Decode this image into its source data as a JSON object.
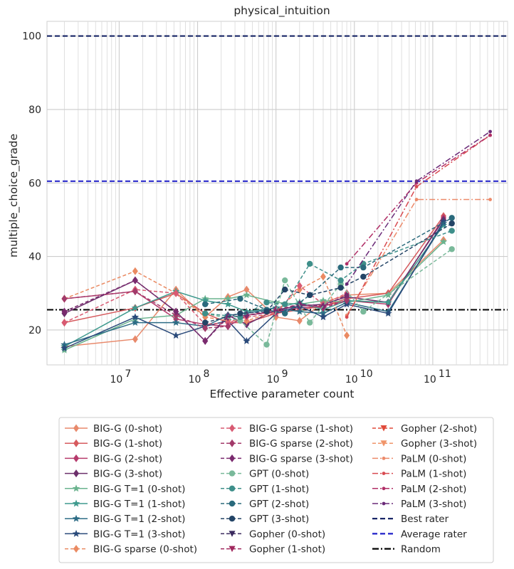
{
  "chart_data": {
    "type": "line",
    "title": "physical_intuition",
    "xlabel": "Effective parameter count",
    "ylabel": "multiple_choice_grade",
    "x_scale": "log",
    "xlim": [
      1200000,
      900000000000
    ],
    "ylim": [
      10.5,
      104
    ],
    "y_ticks": [
      20,
      40,
      60,
      80,
      100
    ],
    "x_ticks": [
      {
        "value": 10000000,
        "base": "10",
        "exp": "7"
      },
      {
        "value": 100000000,
        "base": "10",
        "exp": "8"
      },
      {
        "value": 1000000000,
        "base": "10",
        "exp": "9"
      },
      {
        "value": 10000000000,
        "base": "10",
        "exp": "10"
      },
      {
        "value": 100000000000,
        "base": "10",
        "exp": "11"
      }
    ],
    "grid": true,
    "legend_placement": "below",
    "reference_lines": [
      {
        "name": "Best rater",
        "y": 100.0,
        "color": "#0b1a5e",
        "dash": "dashed"
      },
      {
        "name": "Average rater",
        "y": 60.5,
        "color": "#1f1fc8",
        "dash": "dashed"
      },
      {
        "name": "Random",
        "y": 25.5,
        "color": "#000000",
        "dash": "dashdot"
      }
    ],
    "series": [
      {
        "name": "BIG-G (0-shot)",
        "color": "#e8896b",
        "dash": "solid",
        "marker": "diamond",
        "x": [
          2000000,
          16000000,
          53000000,
          125000000,
          244000000,
          422000000,
          1000000000,
          2000000000,
          4000000000,
          8000000000,
          27000000000,
          137000000000
        ],
        "y": [
          15.5,
          17.5,
          31.0,
          23.5,
          29.0,
          31.0,
          23.5,
          22.5,
          27.5,
          29.5,
          30.0,
          44.5
        ]
      },
      {
        "name": "BIG-G (1-shot)",
        "color": "#d65a5e",
        "dash": "solid",
        "marker": "diamond",
        "x": [
          2000000,
          16000000,
          53000000,
          125000000,
          244000000,
          422000000,
          1000000000,
          2000000000,
          4000000000,
          8000000000,
          27000000000,
          137000000000
        ],
        "y": [
          22.0,
          26.0,
          30.0,
          24.5,
          22.0,
          22.0,
          24.5,
          25.5,
          26.5,
          28.5,
          30.0,
          51.0
        ]
      },
      {
        "name": "BIG-G (2-shot)",
        "color": "#b63a6c",
        "dash": "solid",
        "marker": "diamond",
        "x": [
          2000000,
          16000000,
          53000000,
          125000000,
          244000000,
          422000000,
          1000000000,
          2000000000,
          4000000000,
          8000000000,
          27000000000,
          137000000000
        ],
        "y": [
          28.5,
          30.5,
          23.0,
          21.5,
          21.0,
          24.0,
          25.0,
          26.0,
          26.5,
          28.0,
          27.0,
          50.5
        ]
      },
      {
        "name": "BIG-G (3-shot)",
        "color": "#6c2f6b",
        "dash": "solid",
        "marker": "diamond",
        "x": [
          2000000,
          16000000,
          53000000,
          125000000,
          244000000,
          422000000,
          1000000000,
          2000000000,
          4000000000,
          8000000000,
          27000000000,
          137000000000
        ],
        "y": [
          24.5,
          33.5,
          25.0,
          17.0,
          24.0,
          21.5,
          25.5,
          26.5,
          27.0,
          29.0,
          27.5,
          50.0
        ]
      },
      {
        "name": "BIG-G T=1 (0-shot)",
        "color": "#6ab38e",
        "dash": "solid",
        "marker": "star",
        "x": [
          2000000,
          16000000,
          53000000,
          125000000,
          244000000,
          422000000,
          1000000000,
          2000000000,
          4000000000,
          8000000000,
          27000000000,
          137000000000
        ],
        "y": [
          14.5,
          23.0,
          24.0,
          28.5,
          28.5,
          29.5,
          27.5,
          27.0,
          28.0,
          27.5,
          29.5,
          44.0
        ]
      },
      {
        "name": "BIG-G T=1 (1-shot)",
        "color": "#3f9a8e",
        "dash": "solid",
        "marker": "star",
        "x": [
          2000000,
          16000000,
          53000000,
          125000000,
          244000000,
          422000000,
          1000000000,
          2000000000,
          4000000000,
          8000000000,
          27000000000,
          137000000000
        ],
        "y": [
          15.5,
          26.0,
          30.5,
          28.0,
          27.0,
          25.0,
          26.0,
          27.5,
          25.5,
          28.0,
          27.5,
          48.5
        ]
      },
      {
        "name": "BIG-G T=1 (2-shot)",
        "color": "#2e6d86",
        "dash": "solid",
        "marker": "star",
        "x": [
          2000000,
          16000000,
          53000000,
          125000000,
          244000000,
          422000000,
          1000000000,
          2000000000,
          4000000000,
          8000000000,
          27000000000,
          137000000000
        ],
        "y": [
          16.0,
          22.0,
          22.0,
          21.0,
          24.0,
          24.5,
          26.0,
          25.0,
          24.5,
          27.5,
          25.0,
          49.0
        ]
      },
      {
        "name": "BIG-G T=1 (3-shot)",
        "color": "#2a4a7a",
        "dash": "solid",
        "marker": "star",
        "x": [
          2000000,
          16000000,
          53000000,
          125000000,
          244000000,
          422000000,
          1000000000,
          2000000000,
          4000000000,
          8000000000,
          27000000000,
          137000000000
        ],
        "y": [
          15.0,
          23.5,
          18.5,
          21.0,
          22.5,
          17.0,
          24.5,
          26.5,
          23.5,
          27.0,
          24.5,
          49.5
        ]
      },
      {
        "name": "BIG-G sparse (0-shot)",
        "color": "#ea8a62",
        "dash": "dashed",
        "marker": "diamond",
        "x": [
          2000000,
          16000000,
          53000000,
          125000000,
          244000000,
          422000000,
          1000000000,
          2000000000,
          4000000000,
          8000000000
        ],
        "y": [
          28.5,
          36.0,
          30.0,
          23.5,
          22.5,
          22.5,
          25.0,
          31.0,
          34.5,
          18.5
        ]
      },
      {
        "name": "BIG-G sparse (1-shot)",
        "color": "#d85a72",
        "dash": "dashed",
        "marker": "diamond",
        "x": [
          2000000,
          16000000,
          53000000,
          125000000,
          244000000,
          422000000,
          1000000000,
          2000000000,
          4000000000,
          8000000000
        ],
        "y": [
          22.0,
          31.0,
          30.0,
          21.5,
          22.0,
          23.5,
          24.5,
          32.0,
          27.0,
          30.0
        ]
      },
      {
        "name": "BIG-G sparse (2-shot)",
        "color": "#a23a6a",
        "dash": "dashed",
        "marker": "diamond",
        "x": [
          2000000,
          16000000,
          53000000,
          125000000,
          244000000,
          422000000,
          1000000000,
          2000000000,
          4000000000,
          8000000000
        ],
        "y": [
          28.5,
          30.5,
          24.0,
          20.5,
          21.0,
          24.0,
          25.5,
          27.0,
          26.0,
          28.0
        ]
      },
      {
        "name": "BIG-G sparse (3-shot)",
        "color": "#7a2a6e",
        "dash": "dashed",
        "marker": "diamond",
        "x": [
          2000000,
          16000000,
          53000000,
          125000000,
          244000000,
          422000000,
          1000000000,
          2000000000,
          4000000000,
          8000000000
        ],
        "y": [
          25.0,
          33.5,
          25.0,
          17.0,
          23.5,
          24.0,
          25.0,
          27.0,
          26.5,
          29.5
        ]
      },
      {
        "name": "GPT (0-shot)",
        "color": "#79b99a",
        "dash": "dashed",
        "marker": "circle",
        "x": [
          125000000,
          350000000,
          760000000,
          1300000000,
          2700000000,
          6700000000,
          13000000000,
          175000000000
        ],
        "y": [
          24.5,
          22.5,
          16.0,
          33.5,
          22.0,
          32.5,
          25.0,
          42.0
        ]
      },
      {
        "name": "GPT (1-shot)",
        "color": "#3e8f8a",
        "dash": "dashed",
        "marker": "circle",
        "x": [
          125000000,
          350000000,
          760000000,
          1300000000,
          2700000000,
          6700000000,
          13000000000,
          175000000000
        ],
        "y": [
          24.5,
          23.5,
          27.5,
          27.0,
          38.0,
          33.5,
          38.0,
          47.0
        ]
      },
      {
        "name": "GPT (2-shot)",
        "color": "#2a6a7c",
        "dash": "dashed",
        "marker": "circle",
        "x": [
          125000000,
          350000000,
          760000000,
          1300000000,
          2700000000,
          6700000000,
          13000000000,
          175000000000
        ],
        "y": [
          27.0,
          28.5,
          25.5,
          24.5,
          29.5,
          37.0,
          37.0,
          50.5
        ]
      },
      {
        "name": "GPT (3-shot)",
        "color": "#234466",
        "dash": "dashed",
        "marker": "circle",
        "x": [
          125000000,
          350000000,
          760000000,
          1300000000,
          2700000000,
          6700000000,
          13000000000,
          175000000000
        ],
        "y": [
          22.0,
          24.5,
          25.0,
          31.0,
          29.5,
          31.5,
          34.5,
          49.0
        ]
      },
      {
        "name": "Gopher (0-shot)",
        "color": "#3a2a5e",
        "dash": "dashed",
        "marker": "triangle-down",
        "x": [],
        "y": []
      },
      {
        "name": "Gopher (1-shot)",
        "color": "#a0285e",
        "dash": "dashed",
        "marker": "triangle-down",
        "x": [],
        "y": []
      },
      {
        "name": "Gopher (2-shot)",
        "color": "#e04a3a",
        "dash": "dashed",
        "marker": "triangle-down",
        "x": [],
        "y": []
      },
      {
        "name": "Gopher (3-shot)",
        "color": "#f0956a",
        "dash": "dashed",
        "marker": "triangle-down",
        "x": [],
        "y": []
      },
      {
        "name": "PaLM (0-shot)",
        "color": "#ec8a6a",
        "dash": "dashdot",
        "marker": "point",
        "x": [
          8000000000,
          62000000000,
          540000000000
        ],
        "y": [
          24.0,
          55.5,
          55.5
        ]
      },
      {
        "name": "PaLM (1-shot)",
        "color": "#d84a50",
        "dash": "dashdot",
        "marker": "point",
        "x": [
          8000000000,
          62000000000,
          540000000000
        ],
        "y": [
          23.5,
          59.0,
          73.0
        ]
      },
      {
        "name": "PaLM (2-shot)",
        "color": "#b02e66",
        "dash": "dashdot",
        "marker": "point",
        "x": [
          8000000000,
          62000000000,
          540000000000
        ],
        "y": [
          38.0,
          60.0,
          73.0
        ]
      },
      {
        "name": "PaLM (3-shot)",
        "color": "#6a2a78",
        "dash": "dashdot",
        "marker": "point",
        "x": [
          8000000000,
          62000000000,
          540000000000
        ],
        "y": [
          32.5,
          60.5,
          74.0
        ]
      }
    ]
  }
}
